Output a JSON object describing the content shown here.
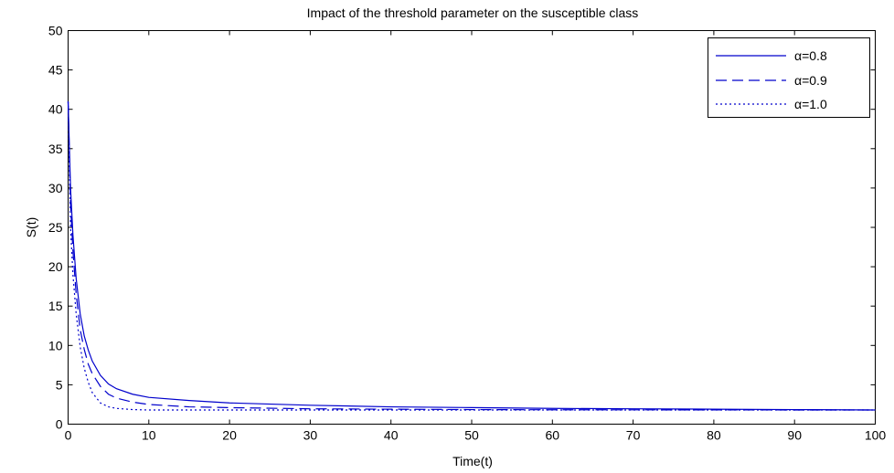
{
  "chart_data": {
    "type": "line",
    "title": "Impact of the threshold parameter on the susceptible class",
    "xlabel": "Time(t)",
    "ylabel": "S(t)",
    "xlim": [
      0,
      100
    ],
    "ylim": [
      0,
      50
    ],
    "xticks": [
      "0",
      "10",
      "20",
      "30",
      "40",
      "50",
      "60",
      "70",
      "80",
      "90",
      "100"
    ],
    "yticks": [
      "0",
      "5",
      "10",
      "15",
      "20",
      "25",
      "30",
      "35",
      "40",
      "45",
      "50"
    ],
    "grid": false,
    "legend_position": "top-right",
    "series": [
      {
        "name": "α=0.8",
        "color": "#0000cc",
        "line_style": "solid",
        "x": [
          0,
          0.3,
          0.6,
          1,
          1.5,
          2,
          2.5,
          3,
          4,
          5,
          6,
          8,
          10,
          15,
          20,
          30,
          40,
          50,
          60,
          70,
          80,
          90,
          100
        ],
        "y": [
          41,
          30,
          24,
          18.5,
          14,
          11.2,
          9.4,
          8,
          6.2,
          5.1,
          4.5,
          3.8,
          3.4,
          3,
          2.7,
          2.4,
          2.2,
          2.1,
          2,
          1.95,
          1.9,
          1.85,
          1.8
        ]
      },
      {
        "name": "α=0.9",
        "color": "#0000cc",
        "line_style": "dashed",
        "x": [
          0,
          0.3,
          0.6,
          1,
          1.5,
          2,
          2.5,
          3,
          4,
          5,
          6,
          8,
          10,
          15,
          20,
          30,
          40,
          50,
          60,
          70,
          80,
          90,
          100
        ],
        "y": [
          41,
          28,
          22,
          16.5,
          12,
          9.5,
          7.6,
          6.4,
          4.8,
          3.8,
          3.3,
          2.8,
          2.5,
          2.2,
          2.1,
          1.95,
          1.9,
          1.85,
          1.83,
          1.82,
          1.81,
          1.8,
          1.8
        ]
      },
      {
        "name": "α=1.0",
        "color": "#0000cc",
        "line_style": "dotted",
        "x": [
          0,
          0.3,
          0.6,
          1,
          1.5,
          2,
          2.5,
          3,
          4,
          5,
          6,
          8,
          10,
          15,
          20,
          30,
          40,
          50,
          60,
          70,
          80,
          90,
          100
        ],
        "y": [
          41,
          25,
          19,
          14,
          9.8,
          7.1,
          5.3,
          4,
          2.7,
          2.2,
          2,
          1.85,
          1.8,
          1.8,
          1.8,
          1.8,
          1.8,
          1.8,
          1.8,
          1.8,
          1.8,
          1.8,
          1.8
        ]
      }
    ]
  }
}
